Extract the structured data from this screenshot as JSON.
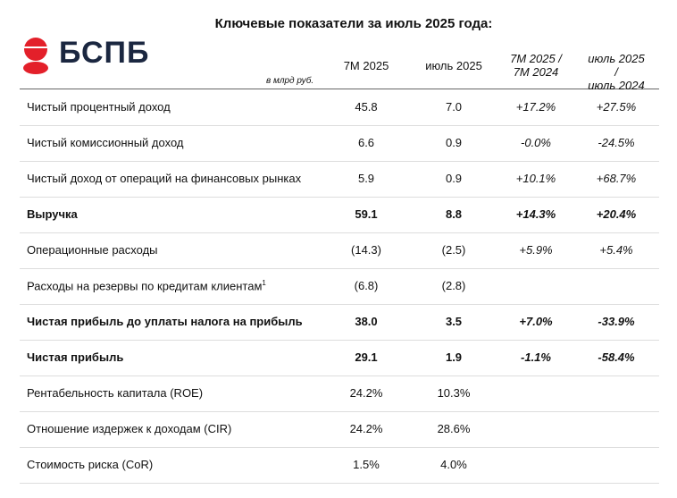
{
  "header": {
    "title": "Ключевые показатели за июль 2025 года:",
    "logo": "БСПБ",
    "unit": "в млрд руб."
  },
  "table": {
    "columns": [
      "7M 2025",
      "июль 2025",
      "7M 2025 /\n7M 2024",
      "июль 2025 /\nиюль 2024"
    ],
    "rows": [
      {
        "label": "Чистый процентный доход",
        "values": [
          "45.8",
          "7.0",
          "+17.2%",
          "+27.5%"
        ],
        "bold": false
      },
      {
        "label": "Чистый комиссионный доход",
        "values": [
          "6.6",
          "0.9",
          "-0.0%",
          "-24.5%"
        ],
        "bold": false
      },
      {
        "label": "Чистый доход от операций на финансовых рынках",
        "values": [
          "5.9",
          "0.9",
          "+10.1%",
          "+68.7%"
        ],
        "bold": false
      },
      {
        "label": "Выручка",
        "values": [
          "59.1",
          "8.8",
          "+14.3%",
          "+20.4%"
        ],
        "bold": true
      },
      {
        "label": "Операционные расходы",
        "values": [
          "(14.3)",
          "(2.5)",
          "+5.9%",
          "+5.4%"
        ],
        "bold": false
      },
      {
        "label": "Расходы на резервы по кредитам клиентам",
        "note": "1",
        "values": [
          "(6.8)",
          "(2.8)",
          null,
          null
        ],
        "bold": false
      },
      {
        "label": "Чистая прибыль до уплаты налога на прибыль",
        "values": [
          "38.0",
          "3.5",
          "+7.0%",
          "-33.9%"
        ],
        "bold": true
      },
      {
        "label": "Чистая прибыль",
        "values": [
          "29.1",
          "1.9",
          "-1.1%",
          "-58.4%"
        ],
        "bold": true
      },
      {
        "label": "Рентабельность капитала (ROE)",
        "values": [
          "24.2%",
          "10.3%",
          null,
          null
        ],
        "bold": false
      },
      {
        "label": "Отношение издержек к доходам (CIR)",
        "values": [
          "24.2%",
          "28.6%",
          null,
          null
        ],
        "bold": false
      },
      {
        "label": "Стоимость риска (CoR)",
        "values": [
          "1.5%",
          "4.0%",
          null,
          null
        ],
        "bold": false
      }
    ]
  }
}
